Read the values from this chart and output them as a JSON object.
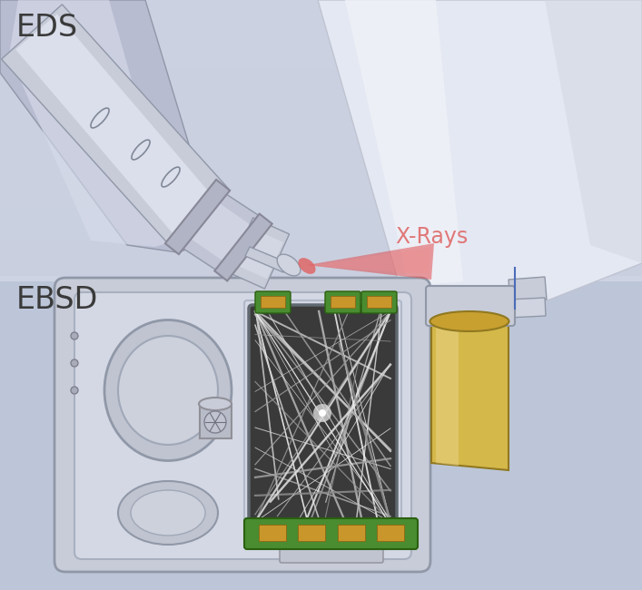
{
  "label_EDS": "EDS",
  "label_EBSD": "EBSD",
  "label_xrays": "X-Rays",
  "label_color_main": "#3a3a3a",
  "label_color_xrays": "#e07878",
  "label_fontsize_main": 24,
  "label_fontsize_xrays": 17,
  "figsize": [
    7.07,
    6.5
  ],
  "dpi": 100,
  "bg_upper": "#cdd3e2",
  "bg_lower": "#b8c2d4",
  "sem_body": "#e8eaf2",
  "sem_edge": "#c0c4d0",
  "eds_probe_main": "#d0d4e0",
  "eds_probe_light": "#eaeef8",
  "eds_probe_dark": "#a8acbc",
  "xray_color": "#e05050",
  "xray_alpha": 0.55,
  "ebsd_body": "#d2d6e2",
  "ebsd_body_light": "#dde1ec",
  "ebsd_screen_dark": "#4a4a4a",
  "green_pcb": "#4a8c30",
  "gold_pad": "#c8962a",
  "eds_det_gold": "#d4b84a",
  "eds_det_gold_light": "#e8d080",
  "blue_line": "#4a6cb8",
  "vertical_line": "#4a6cb8"
}
